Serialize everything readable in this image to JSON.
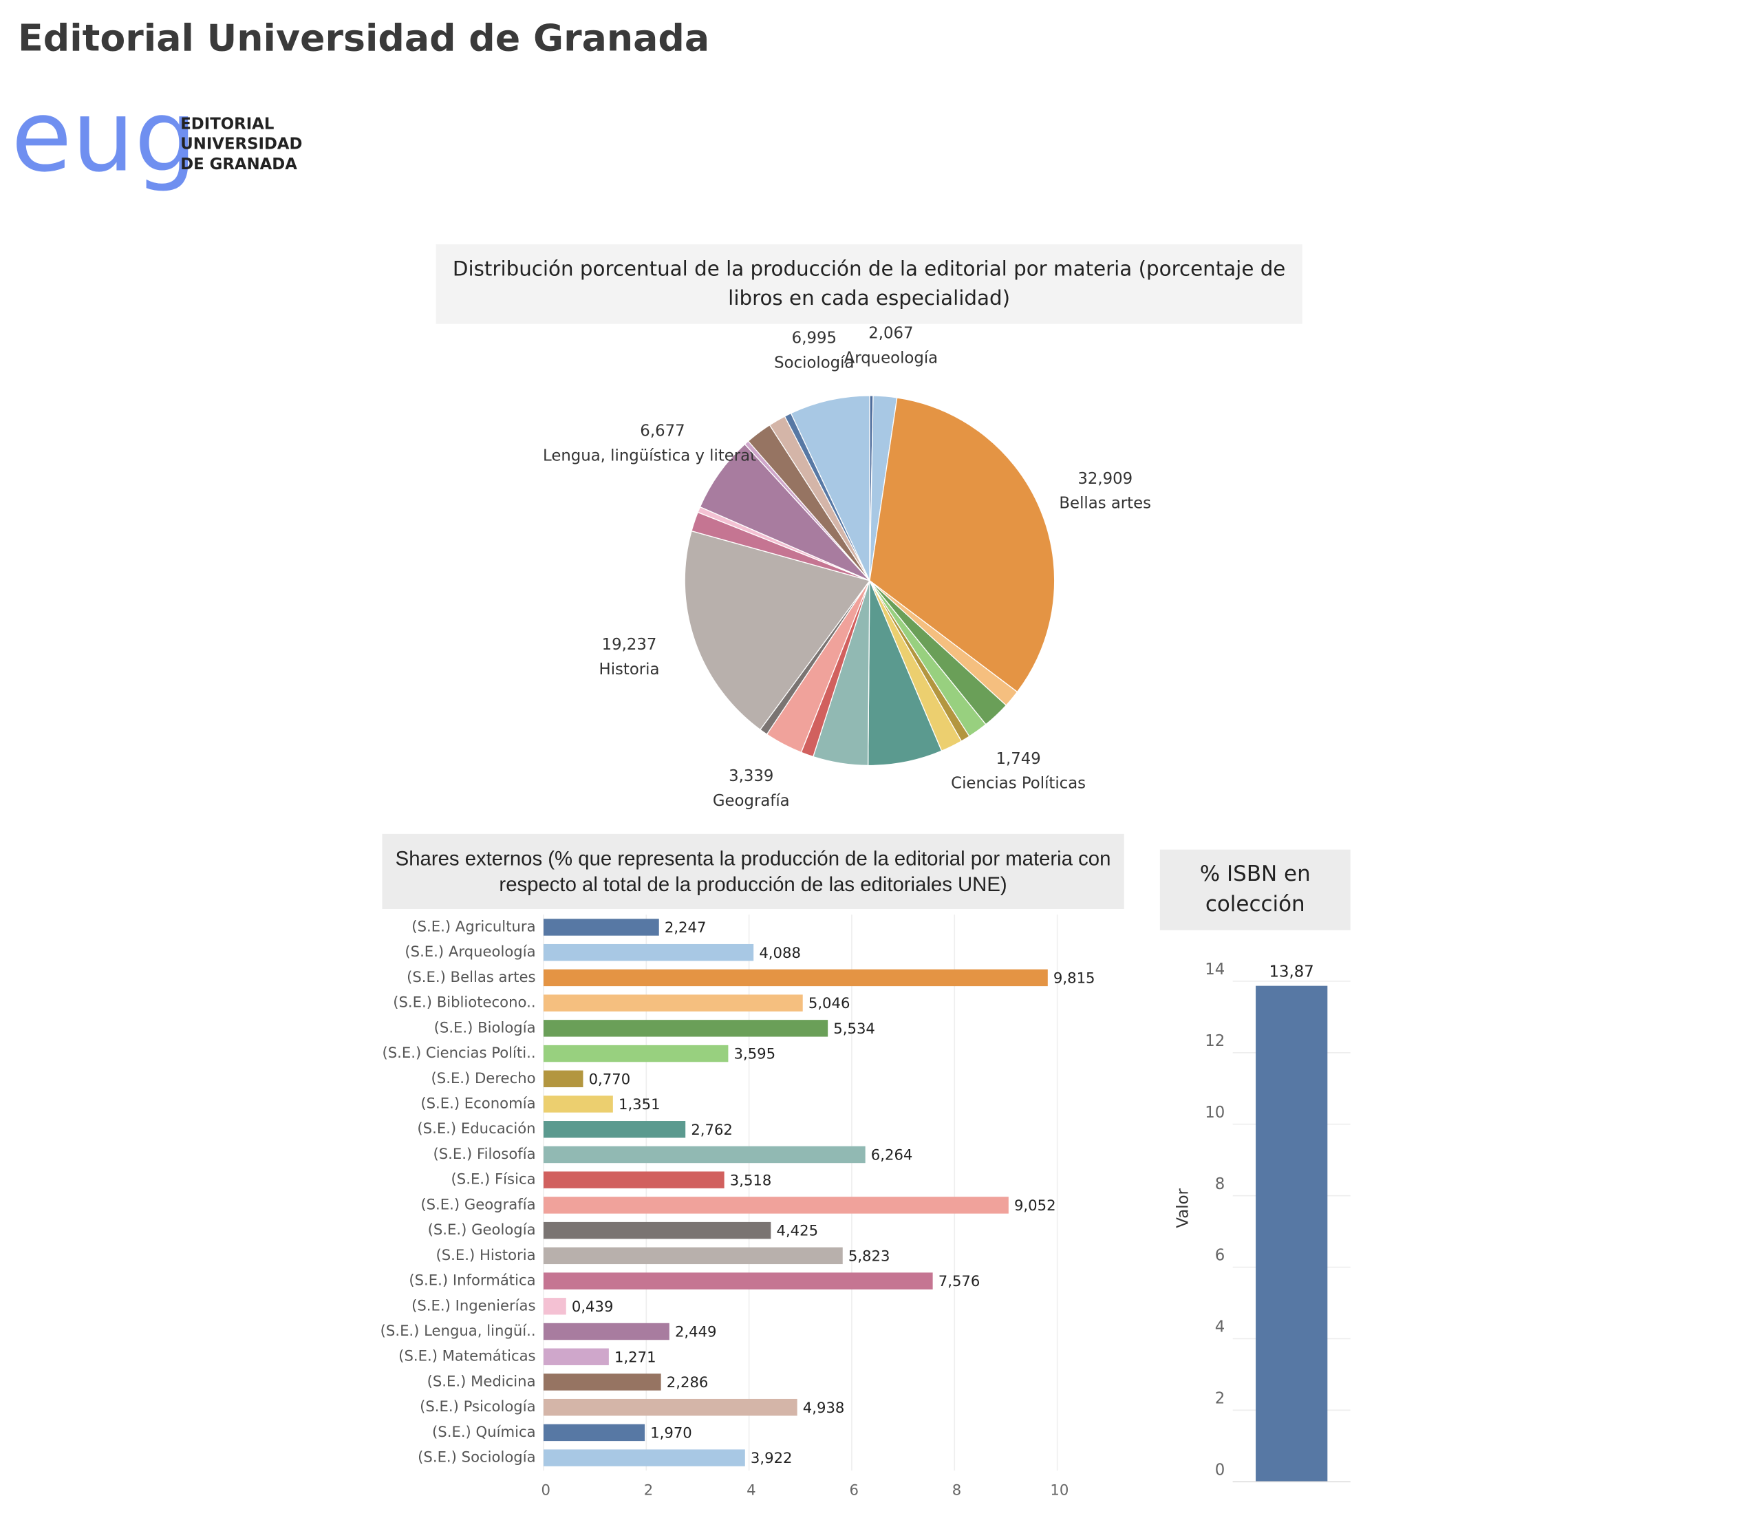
{
  "header": {
    "title": "Editorial Universidad de Granada",
    "logo": {
      "mark": "eug",
      "lines": [
        "EDITORIAL",
        "UNIVERSIDAD",
        "DE GRANADA"
      ]
    }
  },
  "chart_data": [
    {
      "type": "pie",
      "title": "Distribución porcentual de la producción de la editorial por materia (porcentaje de libros en cada especialidad)",
      "categories": [
        null,
        "Arqueología",
        "Bellas artes",
        null,
        null,
        "Ciencias Políticas",
        null,
        null,
        null,
        null,
        null,
        "Geografía",
        null,
        "Historia",
        null,
        null,
        "Lengua, lingüística y literatura",
        null,
        null,
        null,
        null,
        "Sociología"
      ],
      "values": [
        0.3,
        2.067,
        32.909,
        1.5,
        2.4,
        1.749,
        0.8,
        1.9,
        6.5,
        4.8,
        1.1,
        3.339,
        0.7,
        19.237,
        1.7,
        0.5,
        6.677,
        0.4,
        2.3,
        1.5,
        0.6,
        6.995
      ],
      "value_labels": [
        null,
        "2,067",
        "32,909",
        null,
        null,
        "1,749",
        null,
        null,
        null,
        null,
        null,
        "3,339",
        null,
        "19,237",
        null,
        null,
        "6,677",
        null,
        null,
        null,
        null,
        "6,995"
      ],
      "colors": [
        "#4e6d9c",
        "#a8c8e4",
        "#e49444",
        "#f5bf7f",
        "#6a9f58",
        "#98d07f",
        "#b3963f",
        "#eccf6f",
        "#5b9a8f",
        "#91b9b3",
        "#d1605e",
        "#f0a29b",
        "#7a7472",
        "#b8b0ac",
        "#c57592",
        "#f4c1d3",
        "#a87c9f",
        "#cfa7cb",
        "#967462",
        "#d4b5a8",
        "#5778a4",
        "#a8c8e4"
      ]
    },
    {
      "type": "bar",
      "orientation": "horizontal",
      "title": "Shares externos (% que representa la producción de la editorial por materia con respecto al total de la producción de las editoriales UNE)",
      "categories": [
        "(S.E.) Agricultura",
        "(S.E.) Arqueología",
        "(S.E.) Bellas artes",
        "(S.E.) Bibliotecono..",
        "(S.E.) Biología",
        "(S.E.) Ciencias Políti..",
        "(S.E.) Derecho",
        "(S.E.) Economía",
        "(S.E.) Educación",
        "(S.E.) Filosofía",
        "(S.E.) Física",
        "(S.E.) Geografía",
        "(S.E.) Geología",
        "(S.E.) Historia",
        "(S.E.) Informática",
        "(S.E.) Ingenierías",
        "(S.E.) Lengua, lingüí..",
        "(S.E.) Matemáticas",
        "(S.E.) Medicina",
        "(S.E.) Psicología",
        "(S.E.) Química",
        "(S.E.) Sociología"
      ],
      "values": [
        2.247,
        4.088,
        9.815,
        5.046,
        5.534,
        3.595,
        0.77,
        1.351,
        2.762,
        6.264,
        3.518,
        9.052,
        4.425,
        5.823,
        7.576,
        0.439,
        2.449,
        1.271,
        2.286,
        4.938,
        1.97,
        3.922
      ],
      "value_labels": [
        "2,247",
        "4,088",
        "9,815",
        "5,046",
        "5,534",
        "3,595",
        "0,770",
        "1,351",
        "2,762",
        "6,264",
        "3,518",
        "9,052",
        "4,425",
        "5,823",
        "7,576",
        "0,439",
        "2,449",
        "1,271",
        "2,286",
        "4,938",
        "1,970",
        "3,922"
      ],
      "colors": [
        "#5778a4",
        "#a8c8e4",
        "#e49444",
        "#f5bf7f",
        "#6a9f58",
        "#98d07f",
        "#b3963f",
        "#eccf6f",
        "#5b9a8f",
        "#91b9b3",
        "#d1605e",
        "#f0a29b",
        "#7a7472",
        "#b8b0ac",
        "#c57592",
        "#f4c1d3",
        "#a87c9f",
        "#cfa7cb",
        "#967462",
        "#d4b5a8",
        "#5778a4",
        "#a8c8e4"
      ],
      "xlim": [
        0,
        11.3
      ],
      "xticks": [
        0,
        2,
        4,
        6,
        8,
        10
      ],
      "grid": true
    },
    {
      "type": "bar",
      "title": "% ISBN en colección",
      "ylabel": "Valor",
      "values": [
        13.87
      ],
      "value_labels": [
        "13,87"
      ],
      "color": "#5778a4",
      "ylim": [
        0,
        14.86
      ],
      "yticks": [
        0,
        2,
        4,
        6,
        8,
        10,
        12,
        14
      ],
      "grid": true
    }
  ]
}
